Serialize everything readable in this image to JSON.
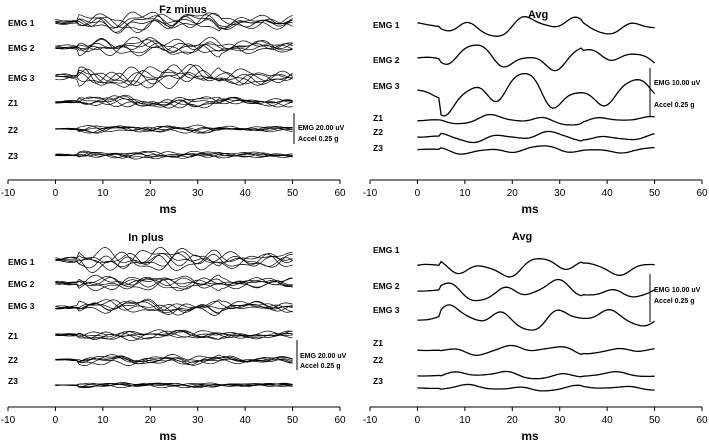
{
  "chart_data": [
    {
      "type": "line",
      "title": "Fz minus",
      "xlabel": "ms",
      "xlim": [
        -10,
        60
      ],
      "xticks": [
        -10,
        0,
        10,
        20,
        30,
        40,
        50,
        60
      ],
      "channels": [
        "EMG 1",
        "EMG 2",
        "EMG 3",
        "Z1",
        "Z2",
        "Z3"
      ],
      "overlaid_trials": true,
      "scale_bar": {
        "emg": "EMG 20.00 uV",
        "accel": "Accel  0.25 g"
      }
    },
    {
      "type": "line",
      "title": "Avg",
      "xlabel": "ms",
      "xlim": [
        -10,
        60
      ],
      "xticks": [
        -10,
        0,
        10,
        20,
        30,
        40,
        50,
        60
      ],
      "channels": [
        "EMG 1",
        "EMG 2",
        "EMG 3",
        "Z1",
        "Z2",
        "Z3"
      ],
      "overlaid_trials": false,
      "scale_bar": {
        "emg": "EMG 10.00 uV",
        "accel": "Accel  0.25 g"
      }
    },
    {
      "type": "line",
      "title": "In plus",
      "xlabel": "ms",
      "xlim": [
        -10,
        60
      ],
      "xticks": [
        -10,
        0,
        10,
        20,
        30,
        40,
        50,
        60
      ],
      "channels": [
        "EMG 1",
        "EMG 2",
        "EMG 3",
        "Z1",
        "Z2",
        "Z3"
      ],
      "overlaid_trials": true,
      "scale_bar": {
        "emg": "EMG 20.00 uV",
        "accel": "Accel  0.25 g"
      }
    },
    {
      "type": "line",
      "title": "Avg",
      "xlabel": "ms",
      "xlim": [
        -10,
        60
      ],
      "xticks": [
        -10,
        0,
        10,
        20,
        30,
        40,
        50,
        60
      ],
      "channels": [
        "EMG 1",
        "EMG 2",
        "EMG 3",
        "Z1",
        "Z2",
        "Z3"
      ],
      "overlaid_trials": false,
      "scale_bar": {
        "emg": "EMG 10.00 uV",
        "accel": "Accel  0.25 g"
      }
    }
  ]
}
